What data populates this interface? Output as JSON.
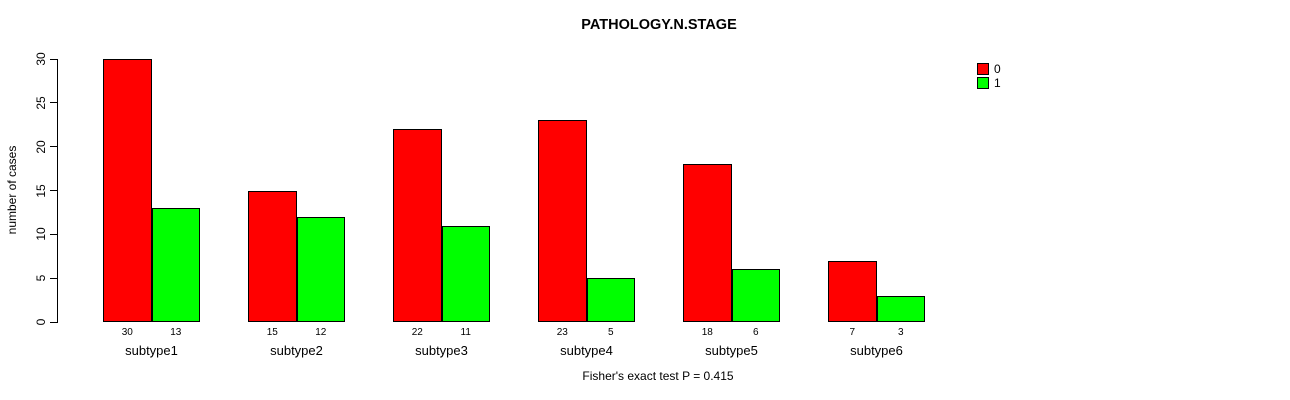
{
  "title": "PATHOLOGY.N.STAGE",
  "ylabel": "number of cases",
  "annotation": "Fisher's exact test P = 0.415",
  "colors": {
    "series0": "#FF0000",
    "series1": "#00FF00",
    "axis": "#000000",
    "background": "#FFFFFF"
  },
  "legend": {
    "items": [
      {
        "label": "0",
        "color": "#FF0000"
      },
      {
        "label": "1",
        "color": "#00FF00"
      }
    ]
  },
  "chart_data": {
    "type": "bar",
    "title": "PATHOLOGY.N.STAGE",
    "xlabel": "",
    "ylabel": "number of cases",
    "categories": [
      "subtype1",
      "subtype2",
      "subtype3",
      "subtype4",
      "subtype5",
      "subtype6"
    ],
    "series": [
      {
        "name": "0",
        "color": "#FF0000",
        "values": [
          30,
          15,
          22,
          23,
          18,
          7
        ]
      },
      {
        "name": "1",
        "color": "#00FF00",
        "values": [
          13,
          12,
          11,
          5,
          6,
          3
        ]
      }
    ],
    "bar_value_labels": true,
    "yticks": [
      0,
      5,
      10,
      15,
      20,
      25,
      30
    ],
    "ylim": [
      0,
      30
    ],
    "grid": false,
    "legend_position": "top-right",
    "annotation": "Fisher's exact test P = 0.415"
  }
}
